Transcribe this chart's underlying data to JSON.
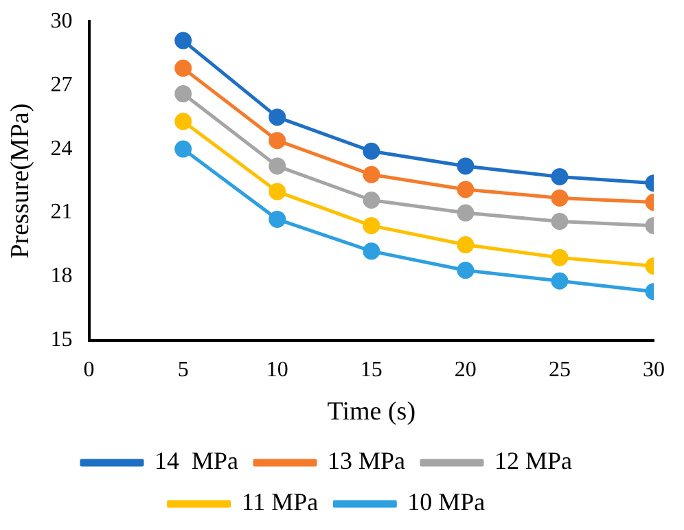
{
  "chart_data": {
    "type": "line",
    "xlabel": "Time (s)",
    "ylabel": "Pressure(MPa)",
    "x": [
      5,
      10,
      15,
      20,
      25,
      30
    ],
    "xlim": [
      0,
      30
    ],
    "xticks": [
      0,
      5,
      10,
      15,
      20,
      25,
      30
    ],
    "ylim": [
      15,
      30
    ],
    "yticks": [
      15,
      18,
      21,
      24,
      27,
      30
    ],
    "grid": false,
    "legend": "bottom",
    "marker": "circle",
    "line_style": "solid",
    "series": [
      {
        "name": "14  MPa",
        "color": "#1f6fc5",
        "values": [
          29.1,
          25.5,
          23.9,
          23.2,
          22.7,
          22.4
        ]
      },
      {
        "name": "13 MPa",
        "color": "#f47b2b",
        "values": [
          27.8,
          24.4,
          22.8,
          22.1,
          21.7,
          21.5
        ]
      },
      {
        "name": "12 MPa",
        "color": "#a5a5a5",
        "values": [
          26.6,
          23.2,
          21.6,
          21.0,
          20.6,
          20.4
        ]
      },
      {
        "name": "11 MPa",
        "color": "#ffc000",
        "values": [
          25.3,
          22.0,
          20.4,
          19.5,
          18.9,
          18.5
        ]
      },
      {
        "name": "10 MPa",
        "color": "#2e9fe0",
        "values": [
          24.0,
          20.7,
          19.2,
          18.3,
          17.8,
          17.3
        ]
      }
    ]
  }
}
